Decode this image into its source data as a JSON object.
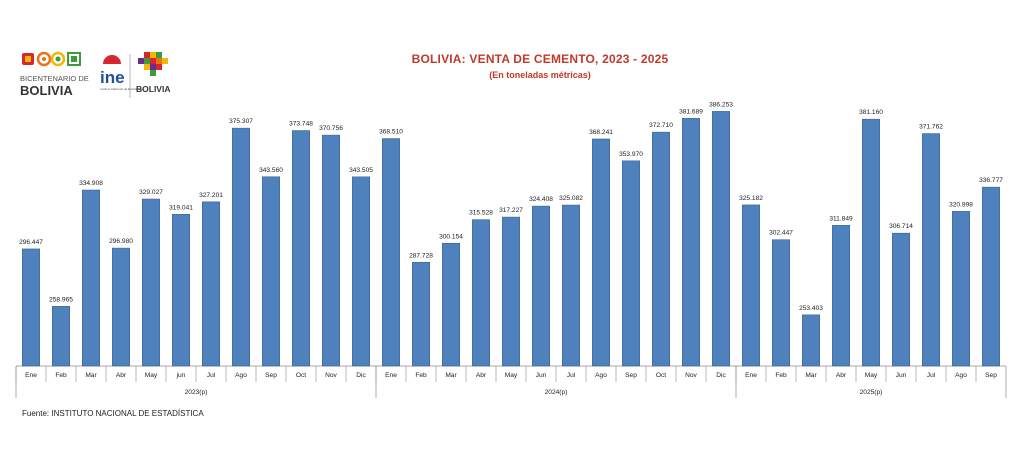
{
  "logos": {
    "bicentenario_line1": "BICENTENARIO DE",
    "bicentenario_line2": "BOLIVIA",
    "ine_text": "ine",
    "ine_subtext": "Instituto Nacional de Estadística",
    "estado_text": "BOLIVIA",
    "colors": {
      "red": "#D7262E",
      "blue": "#1F4E9A",
      "green": "#3E9B3A",
      "yellow": "#F2B705",
      "orange": "#E8731C",
      "purple": "#6A2C91"
    }
  },
  "source": "Fuente: INSTITUTO NACIONAL DE ESTADÍSTICA",
  "chart_data": {
    "type": "bar",
    "title": "BOLIVIA: VENTA DE CEMENTO, 2023 - 2025",
    "subtitle": "(En toneladas métricas)",
    "xlabel": "",
    "ylabel": "",
    "bar_color": "#4F81BD",
    "title_color": "#C0392B",
    "grid": false,
    "ylim": [
      220000,
      395000
    ],
    "groups": [
      {
        "label": "2023(p)",
        "categories": [
          "Ene",
          "Feb",
          "Mar",
          "Abr",
          "May",
          "jun",
          "Jul",
          "Ago",
          "Sep",
          "Oct",
          "Nov",
          "Dic"
        ],
        "values": [
          296447,
          258965,
          334908,
          296980,
          329027,
          319041,
          327201,
          375307,
          343560,
          373748,
          370756,
          343505
        ],
        "value_labels": [
          "296.447",
          "258.965",
          "334.908",
          "296.980",
          "329.027",
          "319.041",
          "327.201",
          "375.307",
          "343.560",
          "373.748",
          "370.756",
          "343.505"
        ]
      },
      {
        "label": "2024(p)",
        "categories": [
          "Ene",
          "Feb",
          "Mar",
          "Abr",
          "May",
          "Jun",
          "Jul",
          "Ago",
          "Sep",
          "Oct",
          "Nov",
          "Dic"
        ],
        "values": [
          368510,
          287728,
          300154,
          315528,
          317227,
          324408,
          325082,
          368241,
          353970,
          372710,
          381689,
          386253
        ],
        "value_labels": [
          "368.510",
          "287.728",
          "300.154",
          "315.528",
          "317.227",
          "324.408",
          "325.082",
          "368.241",
          "353.970",
          "372.710",
          "381.689",
          "386.253"
        ]
      },
      {
        "label": "2025(p)",
        "categories": [
          "Ene",
          "Feb",
          "Mar",
          "Abr",
          "May",
          "Jun",
          "Jul",
          "Ago",
          "Sep"
        ],
        "values": [
          325182,
          302447,
          253403,
          311849,
          381160,
          306714,
          371762,
          320998,
          336777
        ],
        "value_labels": [
          "325.182",
          "302.447",
          "253.403",
          "311.849",
          "381.160",
          "306.714",
          "371.762",
          "320.998",
          "336.777"
        ]
      }
    ]
  }
}
